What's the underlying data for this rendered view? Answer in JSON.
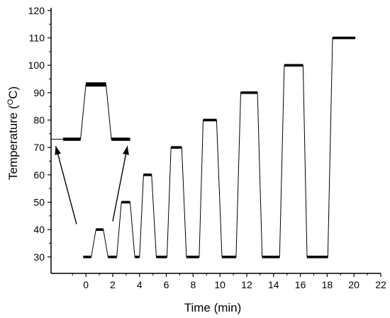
{
  "chart_data": {
    "type": "line",
    "title": "",
    "xlabel": "Time (min)",
    "ylabel_main": "Temperature (",
    "ylabel_sup": "O",
    "ylabel_tail": "C)",
    "xlim": [
      -2.6,
      22
    ],
    "ylim": [
      24,
      121
    ],
    "x_ticks": [
      0,
      2,
      4,
      6,
      8,
      10,
      12,
      14,
      16,
      18,
      20,
      22
    ],
    "y_ticks": [
      30,
      40,
      50,
      60,
      70,
      80,
      90,
      100,
      110,
      120
    ],
    "series": [
      {
        "x": [
          -0.2,
          0.4,
          0.75,
          1.3,
          1.65,
          2.3,
          2.65,
          3.3,
          3.65,
          4.0,
          4.3,
          4.9,
          5.25,
          6.05,
          6.35,
          7.15,
          7.5,
          8.45,
          8.75,
          9.75,
          10.15,
          11.2,
          11.55,
          12.8,
          13.15,
          14.45,
          14.8,
          16.2,
          16.5,
          18.05,
          18.4,
          20.1
        ],
        "y": [
          30,
          30,
          40,
          40,
          30,
          30,
          50,
          50,
          30,
          30,
          60,
          60,
          30,
          30,
          70,
          70,
          30,
          30,
          80,
          80,
          30,
          30,
          90,
          90,
          30,
          30,
          100,
          100,
          30,
          30,
          110,
          110
        ]
      }
    ],
    "hold_segments": [
      {
        "x": [
          -0.2,
          0.4
        ],
        "y": 30
      },
      {
        "x": [
          0.75,
          1.3
        ],
        "y": 40
      },
      {
        "x": [
          1.65,
          2.3
        ],
        "y": 30
      },
      {
        "x": [
          2.65,
          3.3
        ],
        "y": 50
      },
      {
        "x": [
          3.65,
          4.0
        ],
        "y": 30
      },
      {
        "x": [
          4.3,
          4.9
        ],
        "y": 60
      },
      {
        "x": [
          5.25,
          6.05
        ],
        "y": 30
      },
      {
        "x": [
          6.35,
          7.15
        ],
        "y": 70
      },
      {
        "x": [
          7.5,
          8.45
        ],
        "y": 30
      },
      {
        "x": [
          8.75,
          9.75
        ],
        "y": 80
      },
      {
        "x": [
          10.15,
          11.2
        ],
        "y": 30
      },
      {
        "x": [
          11.55,
          12.8
        ],
        "y": 90
      },
      {
        "x": [
          13.15,
          14.45
        ],
        "y": 30
      },
      {
        "x": [
          14.8,
          16.2
        ],
        "y": 100
      },
      {
        "x": [
          16.5,
          18.05
        ],
        "y": 30
      },
      {
        "x": [
          18.4,
          20.1
        ],
        "y": 110
      }
    ],
    "inset": {
      "x": [
        -2.6,
        -1.7,
        -0.4,
        0.0,
        1.5,
        1.9,
        3.3
      ],
      "y": [
        73,
        73,
        73,
        93,
        93,
        73,
        73
      ]
    }
  }
}
